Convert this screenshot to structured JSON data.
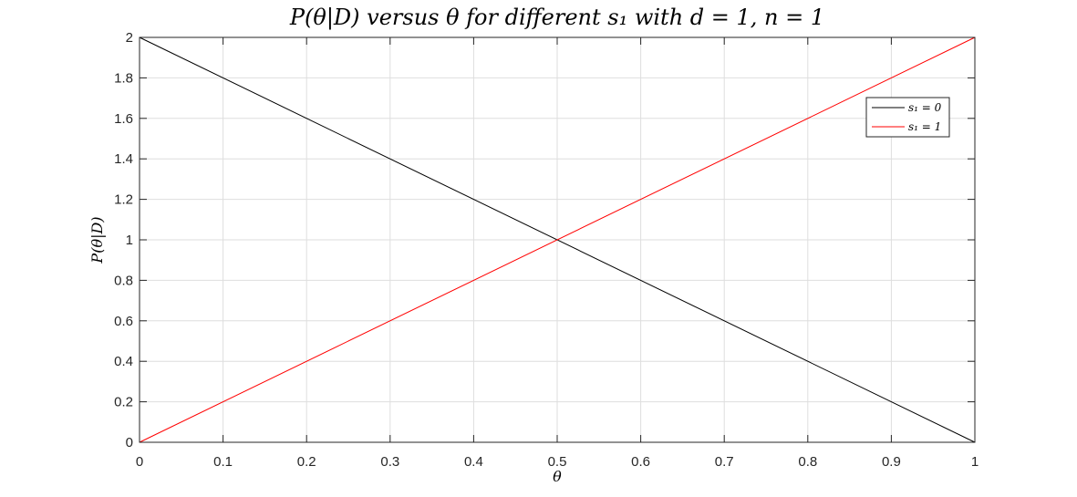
{
  "chart_data": {
    "type": "line",
    "title": "P(θ|D) versus θ for different s₁ with d = 1,  n = 1",
    "xlabel": "θ",
    "ylabel": "P(θ|D)",
    "xlim": [
      0,
      1
    ],
    "ylim": [
      0,
      2
    ],
    "x_ticks": [
      "0",
      "0.1",
      "0.2",
      "0.3",
      "0.4",
      "0.5",
      "0.6",
      "0.7",
      "0.8",
      "0.9",
      "1"
    ],
    "y_ticks": [
      "0",
      "0.2",
      "0.4",
      "0.6",
      "0.8",
      "1",
      "1.2",
      "1.4",
      "1.6",
      "1.8",
      "2"
    ],
    "grid": true,
    "legend_position": "top-right",
    "series": [
      {
        "name": "s₁ = 0",
        "color": "#000000",
        "x": [
          0,
          1
        ],
        "y": [
          2,
          0
        ]
      },
      {
        "name": "s₁ = 1",
        "color": "#ff0000",
        "x": [
          0,
          1
        ],
        "y": [
          0,
          2
        ]
      }
    ]
  }
}
